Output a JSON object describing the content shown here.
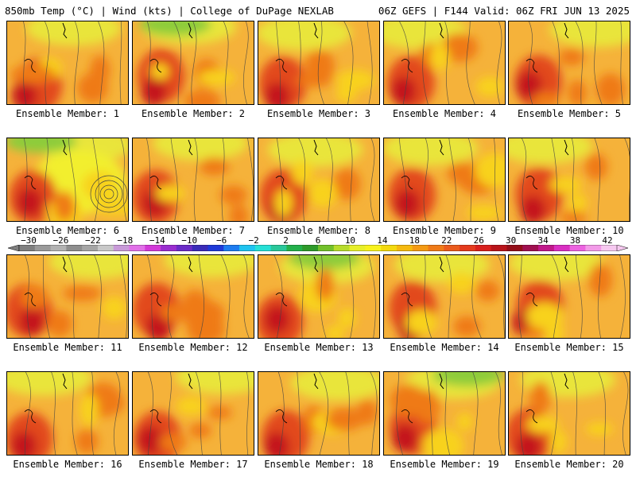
{
  "header": {
    "left": "850mb Temp (°C) | Wind (kts) | College of DuPage NEXLAB",
    "right": "06Z GEFS | F144 Valid: 06Z FRI JUN 13 2025"
  },
  "panels": [
    {
      "label": "Ensemble Member: 1"
    },
    {
      "label": "Ensemble Member: 2"
    },
    {
      "label": "Ensemble Member: 3"
    },
    {
      "label": "Ensemble Member: 4"
    },
    {
      "label": "Ensemble Member: 5"
    },
    {
      "label": "Ensemble Member: 6"
    },
    {
      "label": "Ensemble Member: 7"
    },
    {
      "label": "Ensemble Member: 8"
    },
    {
      "label": "Ensemble Member: 9"
    },
    {
      "label": "Ensemble Member: 10"
    },
    {
      "label": "Ensemble Member: 11"
    },
    {
      "label": "Ensemble Member: 12"
    },
    {
      "label": "Ensemble Member: 13"
    },
    {
      "label": "Ensemble Member: 14"
    },
    {
      "label": "Ensemble Member: 15"
    },
    {
      "label": "Ensemble Member: 16"
    },
    {
      "label": "Ensemble Member: 17"
    },
    {
      "label": "Ensemble Member: 18"
    },
    {
      "label": "Ensemble Member: 19"
    },
    {
      "label": "Ensemble Member: 20"
    }
  ],
  "colorbar": {
    "ticks": [
      "-30",
      "-26",
      "-22",
      "-18",
      "-14",
      "-10",
      "-6",
      "-2",
      "2",
      "6",
      "10",
      "14",
      "18",
      "22",
      "26",
      "30",
      "34",
      "38",
      "42"
    ],
    "colors": [
      "#7f7f7f",
      "#9a9a9a",
      "#b2b2b2",
      "#8e8e8e",
      "#a5a5a5",
      "#c8c8c8",
      "#c89ad8",
      "#e16fe8",
      "#d23ad8",
      "#9a2ecf",
      "#6b2bc7",
      "#3a2bb8",
      "#1f3ad8",
      "#1e7cf0",
      "#1fc3f0",
      "#26e0d6",
      "#29c79a",
      "#23b04b",
      "#2e9a2a",
      "#72c02a",
      "#b7dc2c",
      "#e7ef2a",
      "#f8f21d",
      "#f3d90f",
      "#f5b90f",
      "#f49a14",
      "#ef7a18",
      "#ea5a1c",
      "#e43a1d",
      "#d81f1c",
      "#b8141a",
      "#930e18",
      "#a01050",
      "#c0188a",
      "#d92fc2",
      "#ec63e0",
      "#f29ae8",
      "#f6c8f0"
    ]
  }
}
